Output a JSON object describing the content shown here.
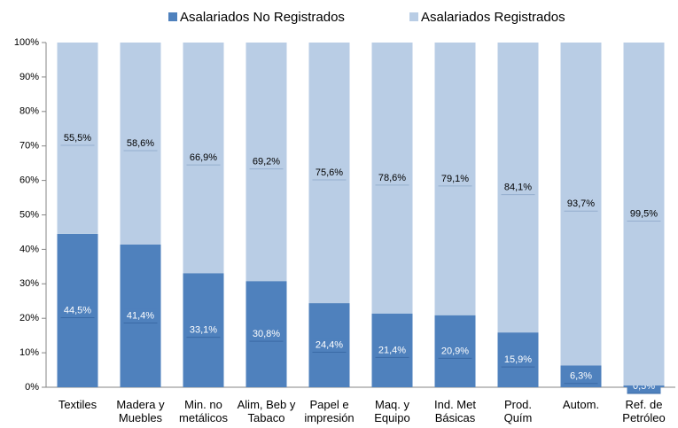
{
  "chart_data": {
    "type": "stacked_bar",
    "categories": [
      "Textiles",
      "Madera y\nMuebles",
      "Min. no\nmetálicos",
      "Alim, Beb y\nTabaco",
      "Papel e\nimpresión",
      "Maq. y\nEquipo",
      "Ind. Met\nBásicas",
      "Prod.\nQuím",
      "Autom.",
      "Ref. de\nPetróleo"
    ],
    "series": [
      {
        "name": "Asalariados No Registrados",
        "color": "#4f81bd",
        "values": [
          44.5,
          41.4,
          33.1,
          30.8,
          24.4,
          21.4,
          20.9,
          15.9,
          6.3,
          0.5
        ],
        "value_labels": [
          "44,5%",
          "41,4%",
          "33,1%",
          "30,8%",
          "24,4%",
          "21,4%",
          "20,9%",
          "15,9%",
          "6,3%",
          "0,5%"
        ]
      },
      {
        "name": "Asalariados Registrados",
        "color": "#b9cde5",
        "values": [
          55.5,
          58.6,
          66.9,
          69.2,
          75.6,
          78.6,
          79.1,
          84.1,
          93.7,
          99.5
        ],
        "value_labels": [
          "55,5%",
          "58,6%",
          "66,9%",
          "69,2%",
          "75,6%",
          "78,6%",
          "79,1%",
          "84,1%",
          "93,7%",
          "99,5%"
        ]
      }
    ],
    "ylim": [
      0,
      100
    ],
    "yticks": [
      {
        "value": 0,
        "label": "0%"
      },
      {
        "value": 10,
        "label": "10%"
      },
      {
        "value": 20,
        "label": "20%"
      },
      {
        "value": 30,
        "label": "30%"
      },
      {
        "value": 40,
        "label": "40%"
      },
      {
        "value": 50,
        "label": "50%"
      },
      {
        "value": 60,
        "label": "60%"
      },
      {
        "value": 70,
        "label": "70%"
      },
      {
        "value": 80,
        "label": "80%"
      },
      {
        "value": 90,
        "label": "90%"
      },
      {
        "value": 100,
        "label": "100%"
      }
    ],
    "legend": "top"
  }
}
